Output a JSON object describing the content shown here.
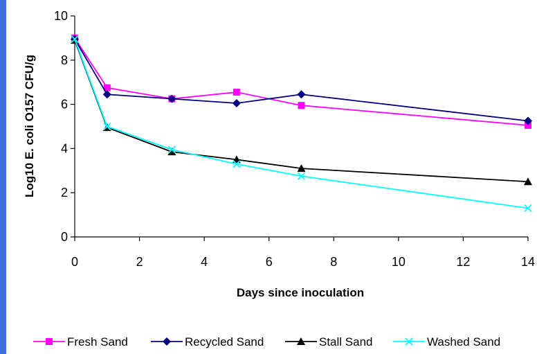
{
  "chart_data": {
    "type": "line",
    "xlabel": "Days since inoculation",
    "ylabel": "Log10  E. coli O157 CFU/g",
    "xlim": [
      0,
      14
    ],
    "ylim": [
      0,
      10
    ],
    "xticks": [
      0,
      2,
      4,
      6,
      8,
      10,
      12,
      14
    ],
    "yticks": [
      0,
      2,
      4,
      6,
      8,
      10
    ],
    "grid": false,
    "legend_position": "bottom",
    "x": [
      0,
      1,
      3,
      5,
      7,
      14
    ],
    "series": [
      {
        "name": "Fresh Sand",
        "values": [
          9.0,
          6.75,
          6.25,
          6.55,
          5.95,
          5.05
        ],
        "color": "#ff00ff",
        "marker": "square"
      },
      {
        "name": "Recycled Sand",
        "values": [
          8.95,
          6.45,
          6.25,
          6.05,
          6.45,
          5.25
        ],
        "color": "#000080",
        "marker": "diamond"
      },
      {
        "name": "Stall Sand",
        "values": [
          8.9,
          4.95,
          3.85,
          3.5,
          3.1,
          2.5
        ],
        "color": "#000000",
        "marker": "triangle"
      },
      {
        "name": "Washed Sand",
        "values": [
          8.95,
          5.0,
          3.95,
          3.3,
          2.75,
          1.3
        ],
        "color": "#00ffff",
        "marker": "x"
      }
    ]
  }
}
